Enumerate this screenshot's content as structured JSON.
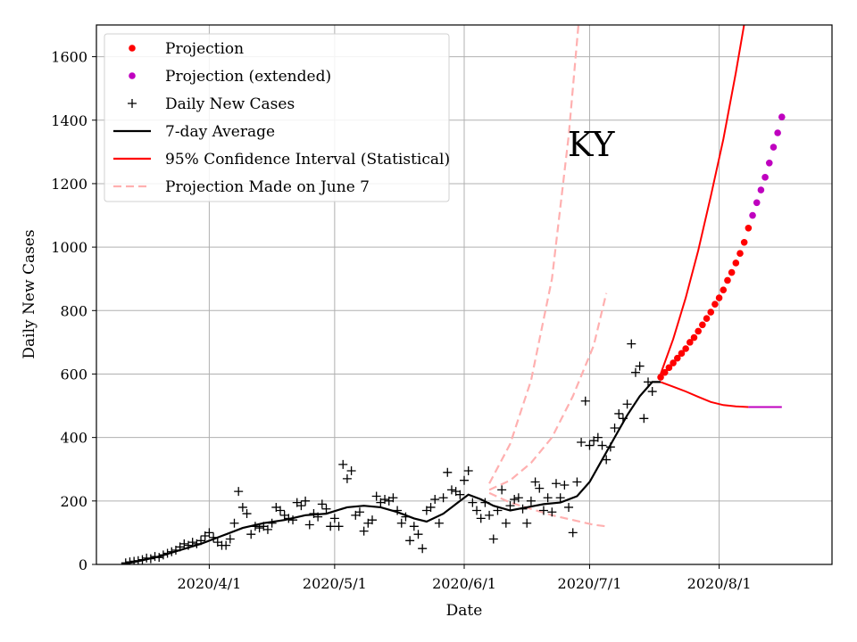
{
  "chart_data": {
    "type": "line",
    "annotation": "KY",
    "xlabel": "Date",
    "ylabel": "Daily New Cases",
    "xlim": [
      "2020-03-05",
      "2020-08-28"
    ],
    "ylim": [
      0,
      1700
    ],
    "x_ticks": [
      {
        "date": "2020-04-01",
        "label": "2020/4/1"
      },
      {
        "date": "2020-05-01",
        "label": "2020/5/1"
      },
      {
        "date": "2020-06-01",
        "label": "2020/6/1"
      },
      {
        "date": "2020-07-01",
        "label": "2020/7/1"
      },
      {
        "date": "2020-08-01",
        "label": "2020/8/1"
      }
    ],
    "y_ticks": [
      0,
      200,
      400,
      600,
      800,
      1000,
      1200,
      1400,
      1600
    ],
    "grid": true,
    "legend_position": "top-left",
    "colors": {
      "projection": "#ff0000",
      "projection_extended": "#bf00bf",
      "daily": "#000000",
      "average": "#000000",
      "ci": "#ff0000",
      "june7": "#ffb0b0"
    },
    "legend": [
      {
        "key": "projection",
        "label": "Projection",
        "marker": "dot"
      },
      {
        "key": "projection_extended",
        "label": "Projection (extended)",
        "marker": "dot"
      },
      {
        "key": "daily",
        "label": "Daily New Cases",
        "marker": "plus"
      },
      {
        "key": "average",
        "label": "7-day Average",
        "marker": "line"
      },
      {
        "key": "ci",
        "label": "95% Confidence Interval (Statistical)",
        "marker": "line"
      },
      {
        "key": "june7",
        "label": "Projection Made on June 7",
        "marker": "dash"
      }
    ],
    "series": [
      {
        "name": "Daily New Cases",
        "key": "daily",
        "kind": "scatter",
        "points": [
          [
            "2020-03-12",
            5
          ],
          [
            "2020-03-13",
            8
          ],
          [
            "2020-03-14",
            10
          ],
          [
            "2020-03-15",
            12
          ],
          [
            "2020-03-16",
            15
          ],
          [
            "2020-03-17",
            20
          ],
          [
            "2020-03-18",
            18
          ],
          [
            "2020-03-19",
            25
          ],
          [
            "2020-03-20",
            22
          ],
          [
            "2020-03-21",
            30
          ],
          [
            "2020-03-22",
            35
          ],
          [
            "2020-03-23",
            40
          ],
          [
            "2020-03-24",
            45
          ],
          [
            "2020-03-25",
            55
          ],
          [
            "2020-03-26",
            65
          ],
          [
            "2020-03-27",
            60
          ],
          [
            "2020-03-28",
            70
          ],
          [
            "2020-03-29",
            65
          ],
          [
            "2020-03-30",
            75
          ],
          [
            "2020-03-31",
            90
          ],
          [
            "2020-04-01",
            100
          ],
          [
            "2020-04-02",
            85
          ],
          [
            "2020-04-03",
            70
          ],
          [
            "2020-04-04",
            60
          ],
          [
            "2020-04-05",
            60
          ],
          [
            "2020-04-06",
            80
          ],
          [
            "2020-04-07",
            130
          ],
          [
            "2020-04-08",
            230
          ],
          [
            "2020-04-09",
            180
          ],
          [
            "2020-04-10",
            160
          ],
          [
            "2020-04-11",
            95
          ],
          [
            "2020-04-12",
            120
          ],
          [
            "2020-04-13",
            115
          ],
          [
            "2020-04-14",
            120
          ],
          [
            "2020-04-15",
            110
          ],
          [
            "2020-04-16",
            130
          ],
          [
            "2020-04-17",
            180
          ],
          [
            "2020-04-18",
            170
          ],
          [
            "2020-04-19",
            155
          ],
          [
            "2020-04-20",
            145
          ],
          [
            "2020-04-21",
            140
          ],
          [
            "2020-04-22",
            195
          ],
          [
            "2020-04-23",
            185
          ],
          [
            "2020-04-24",
            200
          ],
          [
            "2020-04-25",
            125
          ],
          [
            "2020-04-26",
            160
          ],
          [
            "2020-04-27",
            150
          ],
          [
            "2020-04-28",
            190
          ],
          [
            "2020-04-29",
            175
          ],
          [
            "2020-04-30",
            120
          ],
          [
            "2020-05-01",
            145
          ],
          [
            "2020-05-02",
            120
          ],
          [
            "2020-05-03",
            315
          ],
          [
            "2020-05-04",
            270
          ],
          [
            "2020-05-05",
            295
          ],
          [
            "2020-05-06",
            155
          ],
          [
            "2020-05-07",
            165
          ],
          [
            "2020-05-08",
            105
          ],
          [
            "2020-05-09",
            130
          ],
          [
            "2020-05-10",
            140
          ],
          [
            "2020-05-11",
            215
          ],
          [
            "2020-05-12",
            195
          ],
          [
            "2020-05-13",
            205
          ],
          [
            "2020-05-14",
            200
          ],
          [
            "2020-05-15",
            210
          ],
          [
            "2020-05-16",
            170
          ],
          [
            "2020-05-17",
            130
          ],
          [
            "2020-05-18",
            150
          ],
          [
            "2020-05-19",
            75
          ],
          [
            "2020-05-20",
            120
          ],
          [
            "2020-05-21",
            95
          ],
          [
            "2020-05-22",
            50
          ],
          [
            "2020-05-23",
            170
          ],
          [
            "2020-05-24",
            180
          ],
          [
            "2020-05-25",
            205
          ],
          [
            "2020-05-26",
            130
          ],
          [
            "2020-05-27",
            210
          ],
          [
            "2020-05-28",
            290
          ],
          [
            "2020-05-29",
            235
          ],
          [
            "2020-05-30",
            230
          ],
          [
            "2020-05-31",
            220
          ],
          [
            "2020-06-01",
            265
          ],
          [
            "2020-06-02",
            295
          ],
          [
            "2020-06-03",
            195
          ],
          [
            "2020-06-04",
            170
          ],
          [
            "2020-06-05",
            145
          ],
          [
            "2020-06-06",
            195
          ],
          [
            "2020-06-07",
            155
          ],
          [
            "2020-06-08",
            80
          ],
          [
            "2020-06-09",
            170
          ],
          [
            "2020-06-10",
            235
          ],
          [
            "2020-06-11",
            130
          ],
          [
            "2020-06-12",
            185
          ],
          [
            "2020-06-13",
            205
          ],
          [
            "2020-06-14",
            210
          ],
          [
            "2020-06-15",
            175
          ],
          [
            "2020-06-16",
            130
          ],
          [
            "2020-06-17",
            200
          ],
          [
            "2020-06-18",
            260
          ],
          [
            "2020-06-19",
            240
          ],
          [
            "2020-06-20",
            170
          ],
          [
            "2020-06-21",
            210
          ],
          [
            "2020-06-22",
            165
          ],
          [
            "2020-06-23",
            255
          ],
          [
            "2020-06-24",
            210
          ],
          [
            "2020-06-25",
            250
          ],
          [
            "2020-06-26",
            180
          ],
          [
            "2020-06-27",
            100
          ],
          [
            "2020-06-28",
            260
          ],
          [
            "2020-06-29",
            385
          ],
          [
            "2020-06-30",
            515
          ],
          [
            "2020-07-01",
            375
          ],
          [
            "2020-07-02",
            390
          ],
          [
            "2020-07-03",
            400
          ],
          [
            "2020-07-04",
            375
          ],
          [
            "2020-07-05",
            330
          ],
          [
            "2020-07-06",
            370
          ],
          [
            "2020-07-07",
            430
          ],
          [
            "2020-07-08",
            475
          ],
          [
            "2020-07-09",
            460
          ],
          [
            "2020-07-10",
            505
          ],
          [
            "2020-07-11",
            695
          ],
          [
            "2020-07-12",
            605
          ],
          [
            "2020-07-13",
            625
          ],
          [
            "2020-07-14",
            460
          ],
          [
            "2020-07-15",
            575
          ],
          [
            "2020-07-16",
            545
          ]
        ]
      },
      {
        "name": "7-day Average",
        "key": "average",
        "kind": "line",
        "points": [
          [
            "2020-03-11",
            0
          ],
          [
            "2020-03-15",
            10
          ],
          [
            "2020-03-20",
            25
          ],
          [
            "2020-03-25",
            45
          ],
          [
            "2020-03-30",
            65
          ],
          [
            "2020-04-04",
            90
          ],
          [
            "2020-04-09",
            115
          ],
          [
            "2020-04-14",
            130
          ],
          [
            "2020-04-19",
            140
          ],
          [
            "2020-04-24",
            155
          ],
          [
            "2020-04-29",
            160
          ],
          [
            "2020-05-04",
            180
          ],
          [
            "2020-05-08",
            185
          ],
          [
            "2020-05-12",
            180
          ],
          [
            "2020-05-16",
            165
          ],
          [
            "2020-05-20",
            145
          ],
          [
            "2020-05-23",
            135
          ],
          [
            "2020-05-27",
            160
          ],
          [
            "2020-05-31",
            200
          ],
          [
            "2020-06-02",
            220
          ],
          [
            "2020-06-05",
            205
          ],
          [
            "2020-06-08",
            185
          ],
          [
            "2020-06-12",
            170
          ],
          [
            "2020-06-16",
            180
          ],
          [
            "2020-06-20",
            190
          ],
          [
            "2020-06-24",
            195
          ],
          [
            "2020-06-28",
            215
          ],
          [
            "2020-07-01",
            260
          ],
          [
            "2020-07-04",
            330
          ],
          [
            "2020-07-07",
            400
          ],
          [
            "2020-07-10",
            470
          ],
          [
            "2020-07-13",
            530
          ],
          [
            "2020-07-16",
            575
          ],
          [
            "2020-07-18",
            575
          ]
        ]
      },
      {
        "name": "Projection",
        "key": "projection",
        "kind": "scatter",
        "points": [
          [
            "2020-07-18",
            590
          ],
          [
            "2020-07-19",
            605
          ],
          [
            "2020-07-20",
            620
          ],
          [
            "2020-07-21",
            635
          ],
          [
            "2020-07-22",
            650
          ],
          [
            "2020-07-23",
            665
          ],
          [
            "2020-07-24",
            680
          ],
          [
            "2020-07-25",
            700
          ],
          [
            "2020-07-26",
            715
          ],
          [
            "2020-07-27",
            735
          ],
          [
            "2020-07-28",
            755
          ],
          [
            "2020-07-29",
            775
          ],
          [
            "2020-07-30",
            795
          ],
          [
            "2020-07-31",
            820
          ],
          [
            "2020-08-01",
            840
          ],
          [
            "2020-08-02",
            865
          ],
          [
            "2020-08-03",
            895
          ],
          [
            "2020-08-04",
            920
          ],
          [
            "2020-08-05",
            950
          ],
          [
            "2020-08-06",
            980
          ],
          [
            "2020-08-07",
            1015
          ],
          [
            "2020-08-08",
            1060
          ]
        ]
      },
      {
        "name": "Projection (extended)",
        "key": "projection_extended",
        "kind": "scatter",
        "points": [
          [
            "2020-08-09",
            1100
          ],
          [
            "2020-08-10",
            1140
          ],
          [
            "2020-08-11",
            1180
          ],
          [
            "2020-08-12",
            1220
          ],
          [
            "2020-08-13",
            1265
          ],
          [
            "2020-08-14",
            1315
          ],
          [
            "2020-08-15",
            1360
          ],
          [
            "2020-08-16",
            1410
          ]
        ]
      },
      {
        "name": "95% Confidence Interval (Statistical)",
        "key": "ci",
        "kind": "band",
        "upper": [
          [
            "2020-07-18",
            600
          ],
          [
            "2020-07-21",
            710
          ],
          [
            "2020-07-24",
            840
          ],
          [
            "2020-07-27",
            990
          ],
          [
            "2020-07-30",
            1160
          ],
          [
            "2020-08-02",
            1340
          ],
          [
            "2020-08-05",
            1550
          ],
          [
            "2020-08-08",
            1780
          ]
        ],
        "lower": [
          [
            "2020-07-18",
            575
          ],
          [
            "2020-07-21",
            560
          ],
          [
            "2020-07-24",
            545
          ],
          [
            "2020-07-27",
            528
          ],
          [
            "2020-07-30",
            512
          ],
          [
            "2020-08-02",
            502
          ],
          [
            "2020-08-05",
            498
          ],
          [
            "2020-08-08",
            496
          ]
        ],
        "lower_extended": [
          [
            "2020-08-08",
            496
          ],
          [
            "2020-08-16",
            496
          ]
        ]
      },
      {
        "name": "Projection Made on June 7",
        "key": "june7",
        "kind": "dashed-band",
        "mid": [
          [
            "2020-06-07",
            235
          ],
          [
            "2020-06-12",
            265
          ],
          [
            "2020-06-17",
            320
          ],
          [
            "2020-06-22",
            400
          ],
          [
            "2020-06-27",
            530
          ],
          [
            "2020-07-02",
            690
          ],
          [
            "2020-07-05",
            855
          ]
        ],
        "upper": [
          [
            "2020-06-07",
            255
          ],
          [
            "2020-06-12",
            380
          ],
          [
            "2020-06-17",
            580
          ],
          [
            "2020-06-22",
            900
          ],
          [
            "2020-06-26",
            1350
          ],
          [
            "2020-06-29",
            1800
          ]
        ],
        "lower": [
          [
            "2020-06-07",
            225
          ],
          [
            "2020-06-12",
            195
          ],
          [
            "2020-06-17",
            175
          ],
          [
            "2020-06-22",
            155
          ],
          [
            "2020-06-27",
            140
          ],
          [
            "2020-07-02",
            125
          ],
          [
            "2020-07-05",
            120
          ]
        ]
      }
    ]
  }
}
